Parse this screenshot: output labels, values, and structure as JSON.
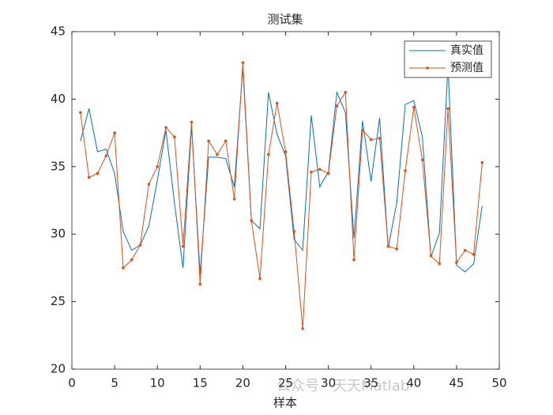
{
  "chart_data": {
    "type": "line",
    "title": "测试集",
    "xlabel": "样本",
    "watermark": "公众号 · 天天Matlab",
    "x": [
      1,
      2,
      3,
      4,
      5,
      6,
      7,
      8,
      9,
      10,
      11,
      12,
      13,
      14,
      15,
      16,
      17,
      18,
      19,
      20,
      21,
      22,
      23,
      24,
      25,
      26,
      27,
      28,
      29,
      30,
      31,
      32,
      33,
      34,
      35,
      36,
      37,
      38,
      39,
      40,
      41,
      42,
      43,
      44,
      45,
      46,
      47,
      48
    ],
    "series": [
      {
        "name": "真实值",
        "color": "#0072BD",
        "marker": false,
        "values": [
          36.9,
          39.3,
          36.1,
          36.3,
          34.5,
          30.2,
          28.8,
          29.2,
          30.6,
          34.0,
          37.7,
          32.3,
          27.5,
          38.0,
          27.0,
          35.7,
          35.7,
          35.6,
          33.5,
          42.3,
          31.0,
          30.4,
          40.5,
          37.4,
          35.8,
          29.6,
          28.8,
          38.8,
          33.5,
          34.6,
          40.5,
          39.0,
          29.7,
          38.4,
          33.9,
          38.6,
          29.0,
          32.3,
          39.6,
          39.9,
          37.2,
          28.3,
          30.1,
          42.5,
          27.7,
          27.2,
          27.8,
          32.1
        ]
      },
      {
        "name": "预测值",
        "color": "#D95319",
        "marker": true,
        "values": [
          39.0,
          34.2,
          34.5,
          35.8,
          37.5,
          27.5,
          28.1,
          29.2,
          33.7,
          35.0,
          37.9,
          37.2,
          29.1,
          38.3,
          26.3,
          36.9,
          35.9,
          36.9,
          32.6,
          42.7,
          31.0,
          26.7,
          35.9,
          39.7,
          36.1,
          30.2,
          23.0,
          34.6,
          34.8,
          34.5,
          39.5,
          40.5,
          28.1,
          37.7,
          37.0,
          37.1,
          29.1,
          28.9,
          34.7,
          39.4,
          35.5,
          28.4,
          27.8,
          39.3,
          27.9,
          28.8,
          28.5,
          35.3
        ]
      }
    ],
    "xlim": [
      0,
      50
    ],
    "xticks": [
      0,
      5,
      10,
      15,
      20,
      25,
      30,
      35,
      40,
      45,
      50
    ],
    "ylim": [
      20,
      45
    ],
    "yticks": [
      20,
      25,
      30,
      35,
      40,
      45
    ],
    "legend": "upper right",
    "grid": false
  }
}
